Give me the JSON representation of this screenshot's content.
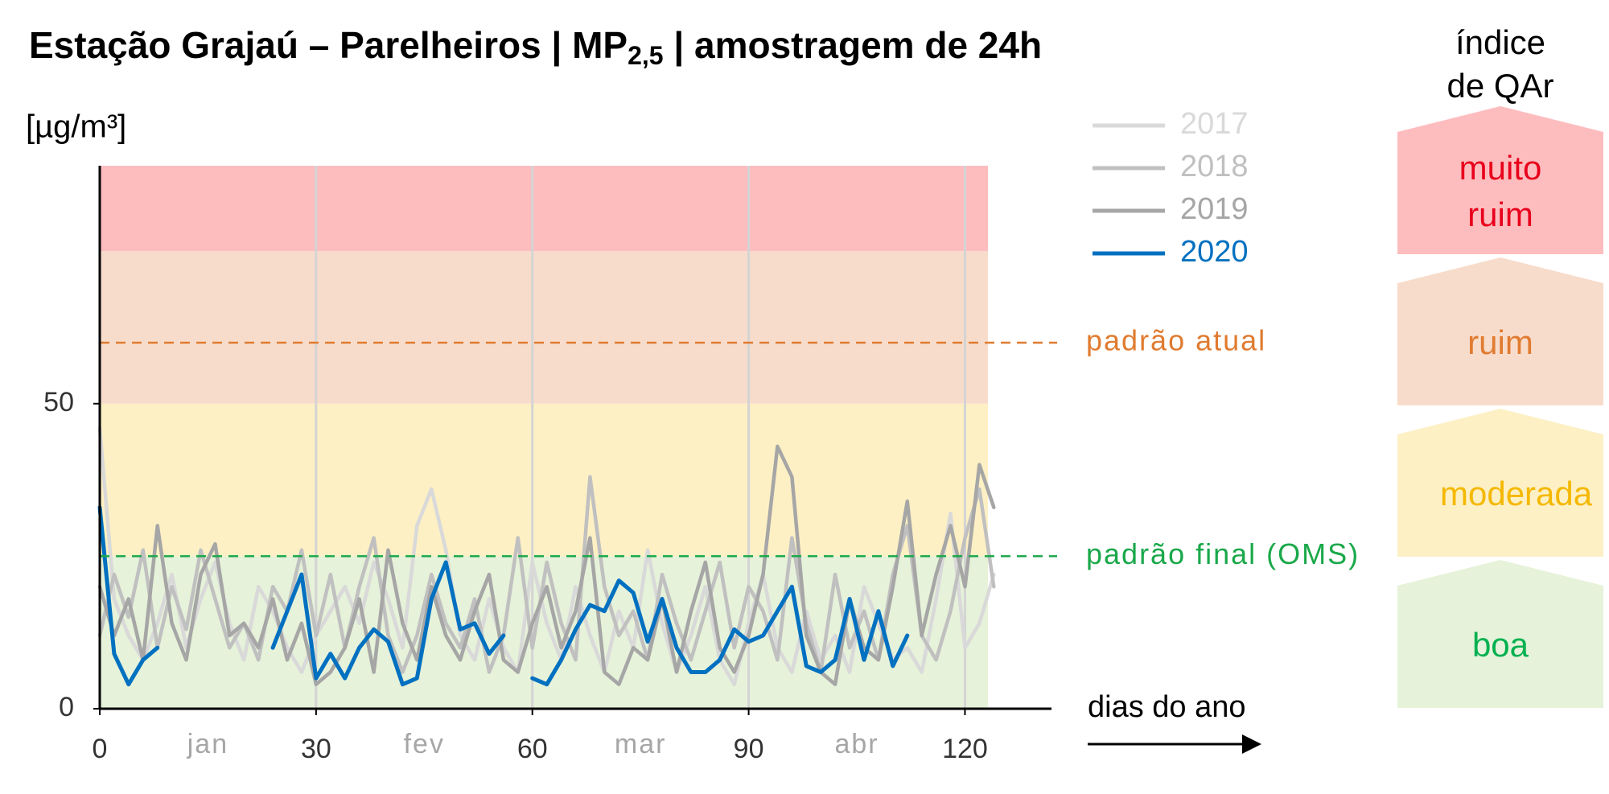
{
  "chart_data": {
    "type": "line",
    "title": {
      "before": "Estação Grajaú – Parelheiros | MP",
      "subscript": "2,5",
      "after": " | amostragem de 24h"
    },
    "y_label": "[µg/m³]",
    "x_label": "dias do ano",
    "index_title": "índice de QAr",
    "xlim": [
      0,
      132
    ],
    "xticks": [
      0,
      30,
      60,
      90,
      120
    ],
    "ylim": [
      0,
      89
    ],
    "yticks": [
      0,
      50
    ],
    "grid": true,
    "month_labels": [
      {
        "label": "jan",
        "x": 15
      },
      {
        "label": "fev",
        "x": 45
      },
      {
        "label": "mar",
        "x": 75
      },
      {
        "label": "abr",
        "x": 105
      }
    ],
    "bands": [
      {
        "label": "boa",
        "from": 0,
        "to": 25,
        "color": "#e6f2d9",
        "text_color": "#00b050"
      },
      {
        "label": "moderada",
        "from": 25,
        "to": 50,
        "color": "#fdf0c4",
        "text_color": "#f5b800"
      },
      {
        "label": "ruim",
        "from": 50,
        "to": 75,
        "color": "#f8dccb",
        "text_color": "#e07b30"
      },
      {
        "label": "muito ruim",
        "from": 75,
        "to": 89,
        "color": "#fdbdbf",
        "text_color": "#e8001c"
      }
    ],
    "reference_lines": [
      {
        "label": "padrão atual",
        "value": 60,
        "color": "#e07b30"
      },
      {
        "label": "padrão final (OMS)",
        "value": 25,
        "color": "#1aa84a"
      }
    ],
    "x": [
      0,
      2,
      4,
      6,
      8,
      10,
      12,
      14,
      16,
      18,
      20,
      22,
      24,
      26,
      28,
      30,
      32,
      34,
      36,
      38,
      40,
      42,
      44,
      46,
      48,
      50,
      52,
      54,
      56,
      58,
      60,
      62,
      64,
      66,
      68,
      70,
      72,
      74,
      76,
      78,
      80,
      82,
      84,
      86,
      88,
      90,
      92,
      94,
      96,
      98,
      100,
      102,
      104,
      106,
      108,
      110,
      112,
      114,
      116,
      118,
      120,
      122,
      124
    ],
    "series": [
      {
        "name": "2017",
        "color": "#d9d9d9",
        "values": [
          46,
          18,
          12,
          8,
          14,
          22,
          10,
          18,
          24,
          14,
          8,
          20,
          16,
          10,
          6,
          12,
          16,
          20,
          14,
          24,
          18,
          10,
          30,
          36,
          26,
          12,
          8,
          18,
          10,
          6,
          24,
          14,
          8,
          20,
          12,
          6,
          16,
          10,
          26,
          14,
          6,
          12,
          20,
          8,
          4,
          14,
          22,
          10,
          6,
          16,
          8,
          12,
          6,
          20,
          14,
          8,
          10,
          6,
          18,
          32,
          10,
          14,
          22
        ]
      },
      {
        "name": "2018",
        "color": "#c0c0c0",
        "values": [
          12,
          22,
          15,
          26,
          10,
          20,
          13,
          26,
          18,
          10,
          14,
          8,
          20,
          16,
          26,
          12,
          22,
          10,
          20,
          28,
          12,
          6,
          12,
          22,
          14,
          10,
          18,
          6,
          12,
          28,
          10,
          24,
          14,
          8,
          38,
          20,
          12,
          16,
          8,
          22,
          14,
          8,
          16,
          24,
          10,
          20,
          16,
          8,
          28,
          14,
          6,
          22,
          10,
          16,
          8,
          22,
          30,
          12,
          8,
          16,
          28,
          36,
          20
        ]
      },
      {
        "name": "2019",
        "color": "#a6a6a6",
        "values": [
          20,
          12,
          18,
          8,
          30,
          14,
          8,
          22,
          27,
          12,
          14,
          10,
          18,
          8,
          14,
          4,
          6,
          10,
          18,
          6,
          26,
          14,
          8,
          20,
          12,
          8,
          16,
          22,
          8,
          6,
          14,
          20,
          10,
          16,
          28,
          6,
          4,
          10,
          8,
          18,
          6,
          16,
          24,
          10,
          6,
          12,
          22,
          43,
          38,
          12,
          6,
          4,
          18,
          10,
          8,
          20,
          34,
          12,
          22,
          30,
          20,
          40,
          33
        ]
      },
      {
        "name": "2020",
        "color": "#0070c0",
        "values": [
          33,
          9,
          4,
          8,
          10,
          null,
          null,
          null,
          null,
          null,
          null,
          null,
          10,
          16,
          22,
          5,
          9,
          5,
          10,
          13,
          11,
          4,
          5,
          18,
          24,
          13,
          14,
          9,
          12,
          null,
          5,
          4,
          8,
          13,
          17,
          16,
          21,
          19,
          11,
          18,
          10,
          6,
          6,
          8,
          13,
          11,
          12,
          16,
          20,
          7,
          6,
          8,
          18,
          8,
          16,
          7,
          12,
          null,
          null,
          null,
          null,
          null,
          null
        ]
      }
    ]
  }
}
